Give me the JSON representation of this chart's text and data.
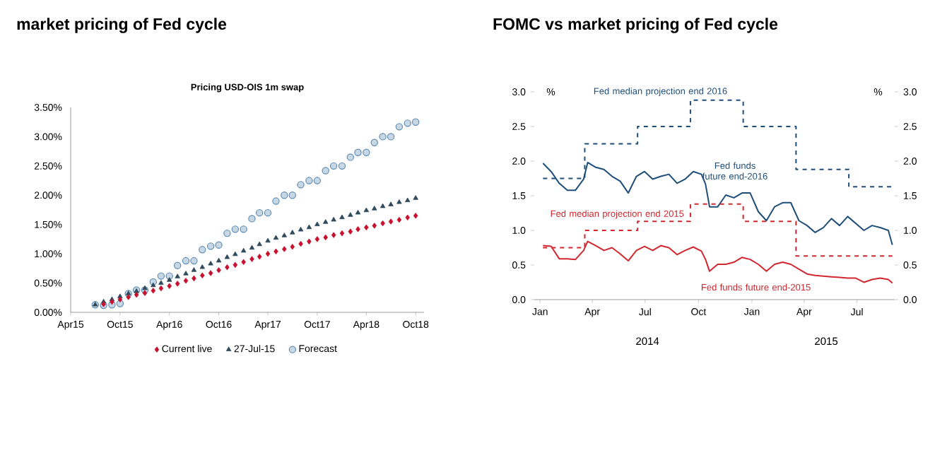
{
  "chart_data": [
    {
      "type": "scatter",
      "title": "market pricing of Fed cycle",
      "subtitle": "Pricing USD-OIS 1m swap",
      "series": [
        {
          "name": "Current live",
          "color": "#c8102e",
          "marker": "diamond",
          "x": [
            "2015-08",
            "2015-09",
            "2015-10",
            "2015-11",
            "2015-12",
            "2016-01",
            "2016-02",
            "2016-03",
            "2016-04",
            "2016-05",
            "2016-06",
            "2016-07",
            "2016-08",
            "2016-09",
            "2016-10",
            "2016-11",
            "2016-12",
            "2017-01",
            "2017-02",
            "2017-03",
            "2017-04",
            "2017-05",
            "2017-06",
            "2017-07",
            "2017-08",
            "2017-09",
            "2017-10",
            "2017-11",
            "2017-12",
            "2018-01",
            "2018-02",
            "2018-03",
            "2018-04",
            "2018-05",
            "2018-06",
            "2018-07",
            "2018-08",
            "2018-09",
            "2018-10"
          ],
          "values": [
            0.14,
            0.18,
            0.22,
            0.26,
            0.3,
            0.33,
            0.37,
            0.41,
            0.45,
            0.49,
            0.54,
            0.58,
            0.63,
            0.67,
            0.72,
            0.77,
            0.81,
            0.86,
            0.91,
            0.95,
            1.0,
            1.04,
            1.08,
            1.12,
            1.17,
            1.21,
            1.25,
            1.28,
            1.32,
            1.35,
            1.38,
            1.42,
            1.45,
            1.48,
            1.52,
            1.55,
            1.58,
            1.62,
            1.65
          ]
        },
        {
          "name": "27-Jul-15",
          "color": "#2e4a5c",
          "marker": "triangle",
          "x": [
            "2015-07",
            "2015-08",
            "2015-09",
            "2015-10",
            "2015-11",
            "2015-12",
            "2016-01",
            "2016-02",
            "2016-03",
            "2016-04",
            "2016-05",
            "2016-06",
            "2016-07",
            "2016-08",
            "2016-09",
            "2016-10",
            "2016-11",
            "2016-12",
            "2017-01",
            "2017-02",
            "2017-03",
            "2017-04",
            "2017-05",
            "2017-06",
            "2017-07",
            "2017-08",
            "2017-09",
            "2017-10",
            "2017-11",
            "2017-12",
            "2018-01",
            "2018-02",
            "2018-03",
            "2018-04",
            "2018-05",
            "2018-06",
            "2018-07",
            "2018-08",
            "2018-09",
            "2018-10"
          ],
          "values": [
            0.13,
            0.18,
            0.22,
            0.27,
            0.32,
            0.36,
            0.41,
            0.46,
            0.5,
            0.55,
            0.61,
            0.66,
            0.72,
            0.77,
            0.83,
            0.88,
            0.94,
            0.99,
            1.05,
            1.1,
            1.16,
            1.22,
            1.27,
            1.31,
            1.36,
            1.41,
            1.45,
            1.5,
            1.54,
            1.58,
            1.62,
            1.66,
            1.7,
            1.74,
            1.77,
            1.81,
            1.84,
            1.88,
            1.91,
            1.95
          ]
        },
        {
          "name": "Forecast",
          "color": "#5f8db3",
          "marker": "circle",
          "x": [
            "2015-07",
            "2015-08",
            "2015-09",
            "2015-10",
            "2015-11",
            "2015-12",
            "2016-01",
            "2016-02",
            "2016-03",
            "2016-04",
            "2016-05",
            "2016-06",
            "2016-07",
            "2016-08",
            "2016-09",
            "2016-10",
            "2016-11",
            "2016-12",
            "2017-01",
            "2017-02",
            "2017-03",
            "2017-04",
            "2017-05",
            "2017-06",
            "2017-07",
            "2017-08",
            "2017-09",
            "2017-10",
            "2017-11",
            "2017-12",
            "2018-01",
            "2018-02",
            "2018-03",
            "2018-04",
            "2018-05",
            "2018-06",
            "2018-07",
            "2018-08",
            "2018-09",
            "2018-10"
          ],
          "values": [
            0.13,
            0.12,
            0.13,
            0.15,
            0.32,
            0.38,
            0.38,
            0.52,
            0.62,
            0.62,
            0.8,
            0.88,
            0.88,
            1.07,
            1.13,
            1.15,
            1.35,
            1.42,
            1.42,
            1.6,
            1.7,
            1.7,
            1.9,
            2.0,
            2.0,
            2.18,
            2.25,
            2.25,
            2.42,
            2.5,
            2.5,
            2.65,
            2.73,
            2.73,
            2.9,
            3.0,
            3.0,
            3.17,
            3.23,
            3.25
          ]
        }
      ],
      "xlim": [
        "2015-04",
        "2018-11"
      ],
      "xticks": [
        {
          "value": "2015-04",
          "label": "Apr15"
        },
        {
          "value": "2015-10",
          "label": "Oct15"
        },
        {
          "value": "2016-04",
          "label": "Apr16"
        },
        {
          "value": "2016-10",
          "label": "Oct16"
        },
        {
          "value": "2017-04",
          "label": "Apr17"
        },
        {
          "value": "2017-10",
          "label": "Oct17"
        },
        {
          "value": "2018-04",
          "label": "Apr18"
        },
        {
          "value": "2018-10",
          "label": "Oct18"
        }
      ],
      "ylim": [
        0,
        3.5
      ],
      "yticks": [
        {
          "value": 0,
          "label": "0.00%"
        },
        {
          "value": 0.5,
          "label": "0.50%"
        },
        {
          "value": 1,
          "label": "1.00%"
        },
        {
          "value": 1.5,
          "label": "1.50%"
        },
        {
          "value": 2,
          "label": "2.00%"
        },
        {
          "value": 2.5,
          "label": "2.50%"
        },
        {
          "value": 3,
          "label": "3.00%"
        },
        {
          "value": 3.5,
          "label": "3.50%"
        }
      ],
      "legend": "bottom"
    },
    {
      "type": "line",
      "title": "FOMC vs market pricing of Fed cycle",
      "ylabel": "%",
      "y2label": "%",
      "annotations": [
        "2014",
        "2015"
      ],
      "series": [
        {
          "name": "Fed funds future end-2016",
          "color": "#1f4e79",
          "x": [
            "2014-01-06",
            "2014-01-20",
            "2014-02-03",
            "2014-02-17",
            "2014-03-03",
            "2014-03-17",
            "2014-03-24",
            "2014-04-07",
            "2014-04-21",
            "2014-05-05",
            "2014-05-19",
            "2014-06-02",
            "2014-06-16",
            "2014-06-30",
            "2014-07-14",
            "2014-07-28",
            "2014-08-11",
            "2014-08-25",
            "2014-09-08",
            "2014-09-22",
            "2014-10-06",
            "2014-10-13",
            "2014-10-20",
            "2014-11-03",
            "2014-11-17",
            "2014-12-01",
            "2014-12-15",
            "2014-12-29",
            "2015-01-12",
            "2015-01-26",
            "2015-02-09",
            "2015-02-23",
            "2015-03-09",
            "2015-03-23",
            "2015-04-06",
            "2015-04-20",
            "2015-05-04",
            "2015-05-18",
            "2015-06-01",
            "2015-06-15",
            "2015-06-29",
            "2015-07-13",
            "2015-07-27",
            "2015-08-10",
            "2015-08-24",
            "2015-08-31"
          ],
          "values": [
            1.97,
            1.85,
            1.68,
            1.58,
            1.58,
            1.74,
            1.98,
            1.91,
            1.88,
            1.78,
            1.71,
            1.54,
            1.78,
            1.85,
            1.74,
            1.78,
            1.81,
            1.68,
            1.74,
            1.85,
            1.81,
            1.67,
            1.34,
            1.34,
            1.51,
            1.47,
            1.54,
            1.54,
            1.27,
            1.14,
            1.34,
            1.4,
            1.4,
            1.14,
            1.07,
            0.97,
            1.04,
            1.17,
            1.07,
            1.2,
            1.1,
            1.0,
            1.07,
            1.04,
            1.0,
            0.79
          ]
        },
        {
          "name": "Fed funds future end-2015",
          "color": "#d0282e",
          "x": [
            "2014-01-06",
            "2014-01-20",
            "2014-02-03",
            "2014-02-17",
            "2014-03-03",
            "2014-03-17",
            "2014-03-24",
            "2014-04-07",
            "2014-04-21",
            "2014-05-05",
            "2014-05-19",
            "2014-06-02",
            "2014-06-16",
            "2014-06-30",
            "2014-07-14",
            "2014-07-28",
            "2014-08-11",
            "2014-08-25",
            "2014-09-08",
            "2014-09-22",
            "2014-10-06",
            "2014-10-13",
            "2014-10-20",
            "2014-11-03",
            "2014-11-17",
            "2014-12-01",
            "2014-12-15",
            "2014-12-29",
            "2015-01-12",
            "2015-01-26",
            "2015-02-09",
            "2015-02-23",
            "2015-03-09",
            "2015-03-23",
            "2015-04-06",
            "2015-04-20",
            "2015-05-04",
            "2015-05-18",
            "2015-06-01",
            "2015-06-15",
            "2015-06-29",
            "2015-07-13",
            "2015-07-27",
            "2015-08-10",
            "2015-08-24",
            "2015-08-31"
          ],
          "values": [
            0.78,
            0.77,
            0.59,
            0.59,
            0.58,
            0.71,
            0.84,
            0.78,
            0.71,
            0.75,
            0.66,
            0.56,
            0.71,
            0.77,
            0.71,
            0.78,
            0.75,
            0.65,
            0.71,
            0.76,
            0.7,
            0.58,
            0.41,
            0.51,
            0.51,
            0.54,
            0.61,
            0.58,
            0.51,
            0.41,
            0.51,
            0.54,
            0.51,
            0.44,
            0.37,
            0.35,
            0.34,
            0.33,
            0.32,
            0.31,
            0.31,
            0.25,
            0.29,
            0.31,
            0.29,
            0.24
          ]
        },
        {
          "name": "Fed median projection end 2016",
          "type": "step",
          "line_style": "dashed",
          "color": "#1f4e79",
          "x": [
            "2014-01-06",
            "2014-03-19",
            "2014-06-18",
            "2014-09-17",
            "2014-12-17",
            "2015-03-18",
            "2015-06-17",
            "2015-08-31"
          ],
          "values": [
            1.75,
            2.25,
            2.5,
            2.88,
            2.5,
            1.88,
            1.63,
            1.63
          ]
        },
        {
          "name": "Fed median projection end 2015",
          "type": "step",
          "line_style": "dashed",
          "color": "#d0282e",
          "x": [
            "2014-01-06",
            "2014-03-19",
            "2014-06-18",
            "2014-09-17",
            "2014-12-17",
            "2015-03-18",
            "2015-06-17",
            "2015-08-31"
          ],
          "values": [
            0.75,
            1.0,
            1.13,
            1.38,
            1.13,
            0.63,
            0.63,
            0.63
          ]
        }
      ],
      "xlim": [
        "2013-12-22",
        "2015-09-04"
      ],
      "xticks": [
        {
          "value": "2014-01-01",
          "label": "Jan"
        },
        {
          "value": "2014-04-01",
          "label": "Apr"
        },
        {
          "value": "2014-07-01",
          "label": "Jul"
        },
        {
          "value": "2014-10-01",
          "label": "Oct"
        },
        {
          "value": "2015-01-01",
          "label": "Jan"
        },
        {
          "value": "2015-04-01",
          "label": "Apr"
        },
        {
          "value": "2015-07-01",
          "label": "Jul"
        }
      ],
      "ylim": [
        0,
        3.0
      ],
      "yticks": [
        {
          "value": 0,
          "label": "0.0"
        },
        {
          "value": 0.5,
          "label": "0.5"
        },
        {
          "value": 1,
          "label": "1.0"
        },
        {
          "value": 1.5,
          "label": "1.5"
        },
        {
          "value": 2,
          "label": "2.0"
        },
        {
          "value": 2.5,
          "label": "2.5"
        },
        {
          "value": 3,
          "label": "3.0"
        }
      ],
      "y2lim": [
        0,
        3.0
      ],
      "y2ticks": [
        {
          "value": 0,
          "label": "0.0"
        },
        {
          "value": 0.5,
          "label": "0.5"
        },
        {
          "value": 1,
          "label": "1.0"
        },
        {
          "value": 1.5,
          "label": "1.5"
        },
        {
          "value": 2,
          "label": "2.0"
        },
        {
          "value": 2.5,
          "label": "2.5"
        },
        {
          "value": 3,
          "label": "3.0"
        }
      ],
      "legend": false
    }
  ]
}
